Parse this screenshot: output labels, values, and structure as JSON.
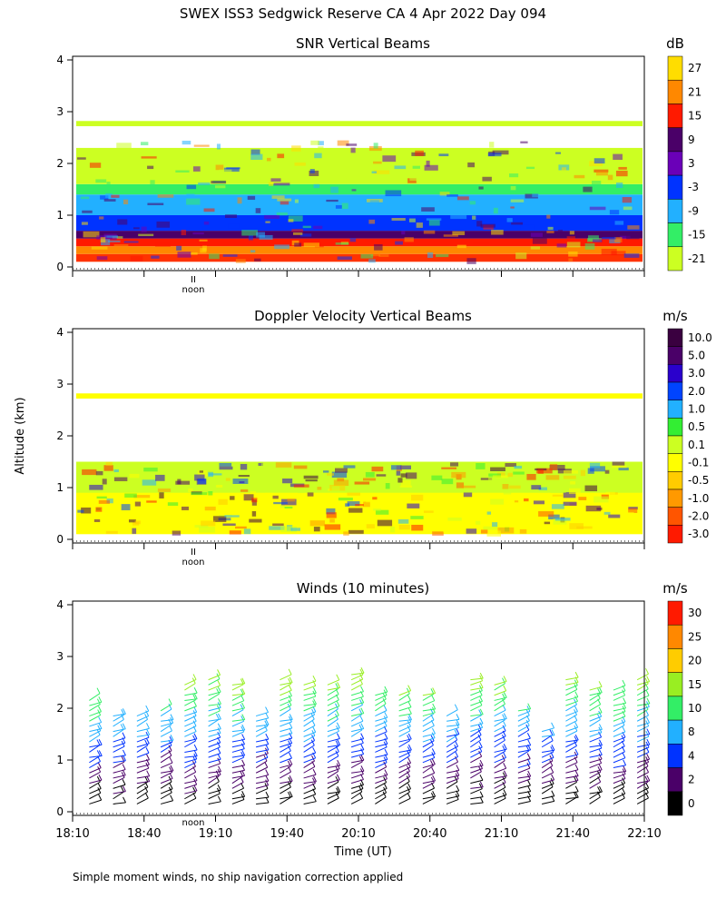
{
  "figure_title": "SWEX ISS3 Sedgwick Reserve CA   4 Apr 2022 Day 094",
  "shared": {
    "ylabel": "Altitude (km)",
    "xlabel": "Time (UT)",
    "noon_label": "noon",
    "noon_marker": "II",
    "footer_note": "Simple moment winds, no ship navigation correction applied"
  },
  "chart_data": [
    {
      "type": "heatmap",
      "title": "SNR Vertical Beams",
      "units": "dB",
      "ylabel": "Altitude (km)",
      "ylim": [
        0,
        4
      ],
      "yticks": [
        0,
        1,
        2,
        3,
        4
      ],
      "colorbar_labels": [
        "27",
        "21",
        "15",
        "9",
        "3",
        "-3",
        "-9",
        "-15",
        "-21"
      ],
      "colorbar_colors": [
        "#ffdd00",
        "#ff8800",
        "#ff1a00",
        "#4a0068",
        "#6a00b8",
        "#0033ff",
        "#22b0ff",
        "#33ee66",
        "#ccff22"
      ],
      "layers": [
        {
          "from_km": 0.1,
          "to_km": 0.25,
          "color": "#ff3300"
        },
        {
          "from_km": 0.25,
          "to_km": 0.4,
          "color": "#ff8800"
        },
        {
          "from_km": 0.4,
          "to_km": 0.55,
          "color": "#ff1a00"
        },
        {
          "from_km": 0.55,
          "to_km": 0.7,
          "color": "#4a0068"
        },
        {
          "from_km": 0.7,
          "to_km": 1.0,
          "color": "#0033ff"
        },
        {
          "from_km": 1.0,
          "to_km": 1.4,
          "color": "#22b0ff"
        },
        {
          "from_km": 1.4,
          "to_km": 1.6,
          "color": "#33ee66"
        },
        {
          "from_km": 1.6,
          "to_km": 2.3,
          "color": "#ccff22"
        },
        {
          "from_km": 2.72,
          "to_km": 2.82,
          "color": "#ccff22"
        }
      ]
    },
    {
      "type": "heatmap",
      "title": "Doppler Velocity Vertical Beams",
      "units": "m/s",
      "ylabel": "Altitude (km)",
      "ylim": [
        0,
        4
      ],
      "yticks": [
        0,
        1,
        2,
        3,
        4
      ],
      "colorbar_labels": [
        "10.0",
        "5.0",
        "3.0",
        "2.0",
        "1.0",
        "0.5",
        "0.1",
        "-0.1",
        "-0.5",
        "-1.0",
        "-2.0",
        "-3.0"
      ],
      "colorbar_colors": [
        "#3a0040",
        "#4a0068",
        "#2a00cc",
        "#0044ff",
        "#22b0ff",
        "#33ee33",
        "#ccff22",
        "#ffff00",
        "#ffcc00",
        "#ff9900",
        "#ff5500",
        "#ff1a00"
      ],
      "layers": [
        {
          "from_km": 0.1,
          "to_km": 1.5,
          "color": "#ffff00"
        },
        {
          "from_km": 0.9,
          "to_km": 1.5,
          "color": "#ccff22"
        },
        {
          "from_km": 2.72,
          "to_km": 2.82,
          "color": "#ffff00"
        }
      ]
    },
    {
      "type": "barbs",
      "title": "Winds (10 minutes)",
      "units": "m/s",
      "ylabel": "Altitude (km)",
      "xlabel": "Time (UT)",
      "ylim": [
        0,
        4
      ],
      "yticks": [
        0,
        1,
        2,
        3,
        4
      ],
      "xlim_minutes": [
        0,
        240
      ],
      "x_ticks": [
        {
          "minute": 0,
          "label": "18:10"
        },
        {
          "minute": 30,
          "label": "18:40"
        },
        {
          "minute": 60,
          "label": "19:10"
        },
        {
          "minute": 90,
          "label": "19:40"
        },
        {
          "minute": 120,
          "label": "20:10"
        },
        {
          "minute": 150,
          "label": "20:40"
        },
        {
          "minute": 180,
          "label": "21:10"
        },
        {
          "minute": 210,
          "label": "21:40"
        },
        {
          "minute": 240,
          "label": "22:10"
        }
      ],
      "colorbar_labels": [
        "30",
        "25",
        "20",
        "15",
        "10",
        "8",
        "4",
        "2",
        "0"
      ],
      "colorbar_colors": [
        "#ff1a00",
        "#ff8800",
        "#ffcc00",
        "#99ee22",
        "#33ee66",
        "#22b0ff",
        "#0033ff",
        "#4a0068",
        "#000000"
      ],
      "profiles": [
        {
          "minute": 10,
          "top_km": 2.25
        },
        {
          "minute": 20,
          "top_km": 1.9
        },
        {
          "minute": 30,
          "top_km": 1.9
        },
        {
          "minute": 40,
          "top_km": 2.0
        },
        {
          "minute": 50,
          "top_km": 2.5
        },
        {
          "minute": 60,
          "top_km": 2.6
        },
        {
          "minute": 70,
          "top_km": 2.55
        },
        {
          "minute": 80,
          "top_km": 1.9
        },
        {
          "minute": 90,
          "top_km": 2.6
        },
        {
          "minute": 100,
          "top_km": 2.55
        },
        {
          "minute": 110,
          "top_km": 2.5
        },
        {
          "minute": 120,
          "top_km": 2.7
        },
        {
          "minute": 130,
          "top_km": 2.35
        },
        {
          "minute": 140,
          "top_km": 2.3
        },
        {
          "minute": 150,
          "top_km": 2.3
        },
        {
          "minute": 160,
          "top_km": 1.9
        },
        {
          "minute": 170,
          "top_km": 2.6
        },
        {
          "minute": 180,
          "top_km": 2.55
        },
        {
          "minute": 190,
          "top_km": 2.0
        },
        {
          "minute": 200,
          "top_km": 1.65
        },
        {
          "minute": 210,
          "top_km": 2.6
        },
        {
          "minute": 220,
          "top_km": 2.45
        },
        {
          "minute": 230,
          "top_km": 2.4
        },
        {
          "minute": 240,
          "top_km": 2.6
        }
      ]
    }
  ]
}
